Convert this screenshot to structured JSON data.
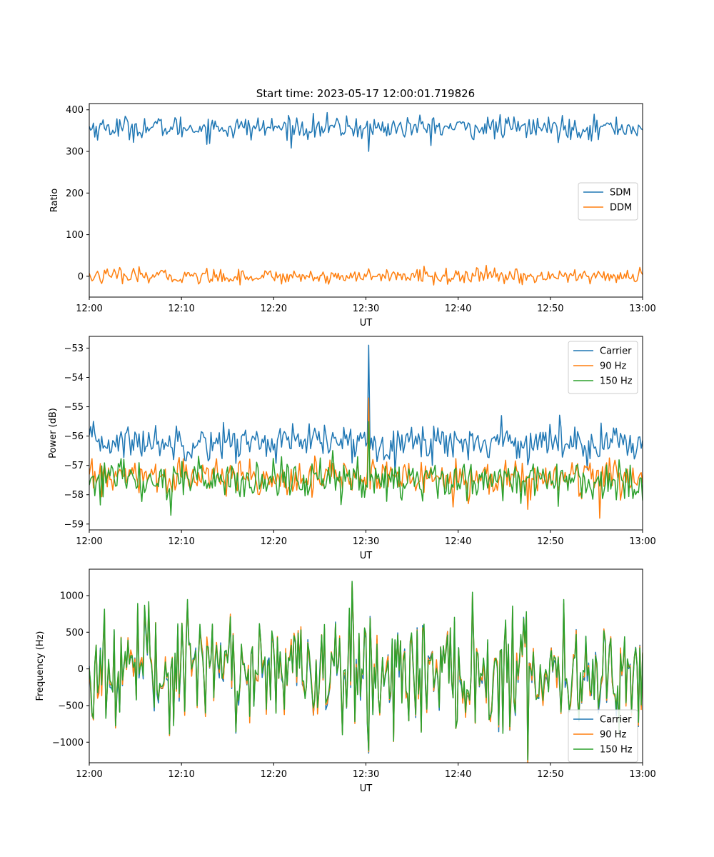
{
  "figure": {
    "title": "Start time: 2023-05-17 12:00:01.719826"
  },
  "colors": {
    "c0": "#1f77b4",
    "c1": "#ff7f0e",
    "c2": "#2ca02c",
    "axis": "#000000",
    "background": "#ffffff"
  },
  "chart_data": [
    {
      "type": "line",
      "title": "Start time: 2023-05-17 12:00:01.719826",
      "xlabel": "UT",
      "ylabel": "Ratio",
      "xlim": [
        "12:00",
        "13:00"
      ],
      "ylim": [
        -50,
        415
      ],
      "x_ticks": [
        "12:00",
        "12:10",
        "12:20",
        "12:30",
        "12:40",
        "12:50",
        "13:00"
      ],
      "y_ticks": [
        0,
        100,
        200,
        300,
        400
      ],
      "y_tick_labels": [
        "0",
        "100",
        "200",
        "300",
        "400"
      ],
      "legend": "center-right",
      "grid": false,
      "series": [
        {
          "name": "SDM",
          "color": "#1f77b4",
          "mean": 357,
          "noise": 14,
          "spikes": [
            [
              30.3,
              300
            ]
          ]
        },
        {
          "name": "DDM",
          "color": "#ff7f0e",
          "mean": 0,
          "noise": 9,
          "spikes": [
            [
              30.3,
              18
            ]
          ]
        }
      ]
    },
    {
      "type": "line",
      "title": "",
      "xlabel": "UT",
      "ylabel": "Power (dB)",
      "xlim": [
        "12:00",
        "13:00"
      ],
      "ylim": [
        -59.2,
        -52.6
      ],
      "x_ticks": [
        "12:00",
        "12:10",
        "12:20",
        "12:30",
        "12:40",
        "12:50",
        "13:00"
      ],
      "y_ticks": [
        -59,
        -58,
        -57,
        -56,
        -55,
        -54,
        -53
      ],
      "y_tick_labels": [
        "−59",
        "−58",
        "−57",
        "−56",
        "−55",
        "−54",
        "−53"
      ],
      "legend": "top-right",
      "grid": false,
      "series": [
        {
          "name": "Carrier",
          "color": "#1f77b4",
          "mean": -56.2,
          "noise": 0.3,
          "spikes": [
            [
              30.3,
              -52.9
            ],
            [
              44.7,
              -55.3
            ]
          ]
        },
        {
          "name": "90 Hz",
          "color": "#ff7f0e",
          "mean": -57.4,
          "noise": 0.3,
          "spikes": [
            [
              30.3,
              -54.7
            ],
            [
              47.5,
              -58.5
            ],
            [
              55.3,
              -58.8
            ]
          ]
        },
        {
          "name": "150 Hz",
          "color": "#2ca02c",
          "mean": -57.5,
          "noise": 0.35,
          "spikes": [
            [
              30.3,
              -55.5
            ],
            [
              8.9,
              -58.7
            ]
          ]
        }
      ]
    },
    {
      "type": "line",
      "title": "",
      "xlabel": "UT",
      "ylabel": "Frequency (Hz)",
      "xlim": [
        "12:00",
        "13:00"
      ],
      "ylim": [
        -1280,
        1360
      ],
      "x_ticks": [
        "12:00",
        "12:10",
        "12:20",
        "12:30",
        "12:40",
        "12:50",
        "13:00"
      ],
      "y_ticks": [
        -1000,
        -500,
        0,
        500,
        1000
      ],
      "y_tick_labels": [
        "−1000",
        "−500",
        "0",
        "500",
        "1000"
      ],
      "legend": "bottom-right",
      "grid": false,
      "series": [
        {
          "name": "Carrier",
          "color": "#1f77b4",
          "mean": 0,
          "noise": 380,
          "offset": -60
        },
        {
          "name": "90 Hz",
          "color": "#ff7f0e",
          "mean": 0,
          "noise": 380,
          "offset": -30
        },
        {
          "name": "150 Hz",
          "color": "#2ca02c",
          "mean": 0,
          "noise": 380,
          "offset": 0
        }
      ]
    }
  ]
}
